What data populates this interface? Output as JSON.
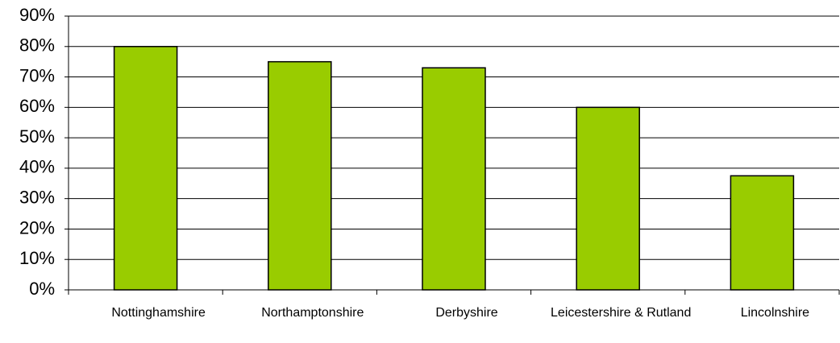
{
  "chart_data": {
    "type": "bar",
    "categories": [
      "Nottinghamshire",
      "Northamptonshire",
      "Derbyshire",
      "Leicestershire & Rutland",
      "Lincolnshire"
    ],
    "values": [
      80,
      75,
      73,
      60,
      37.5
    ],
    "color": "#99cc00",
    "ylim": [
      0,
      90
    ],
    "yticks": [
      {
        "value": 0,
        "label": "0%"
      },
      {
        "value": 10,
        "label": "10%"
      },
      {
        "value": 20,
        "label": "20%"
      },
      {
        "value": 30,
        "label": "30%"
      },
      {
        "value": 40,
        "label": "40%"
      },
      {
        "value": 50,
        "label": "50%"
      },
      {
        "value": 60,
        "label": "60%"
      },
      {
        "value": 70,
        "label": "70%"
      },
      {
        "value": 80,
        "label": "80%"
      },
      {
        "value": 90,
        "label": "90%"
      }
    ],
    "grid": true
  }
}
